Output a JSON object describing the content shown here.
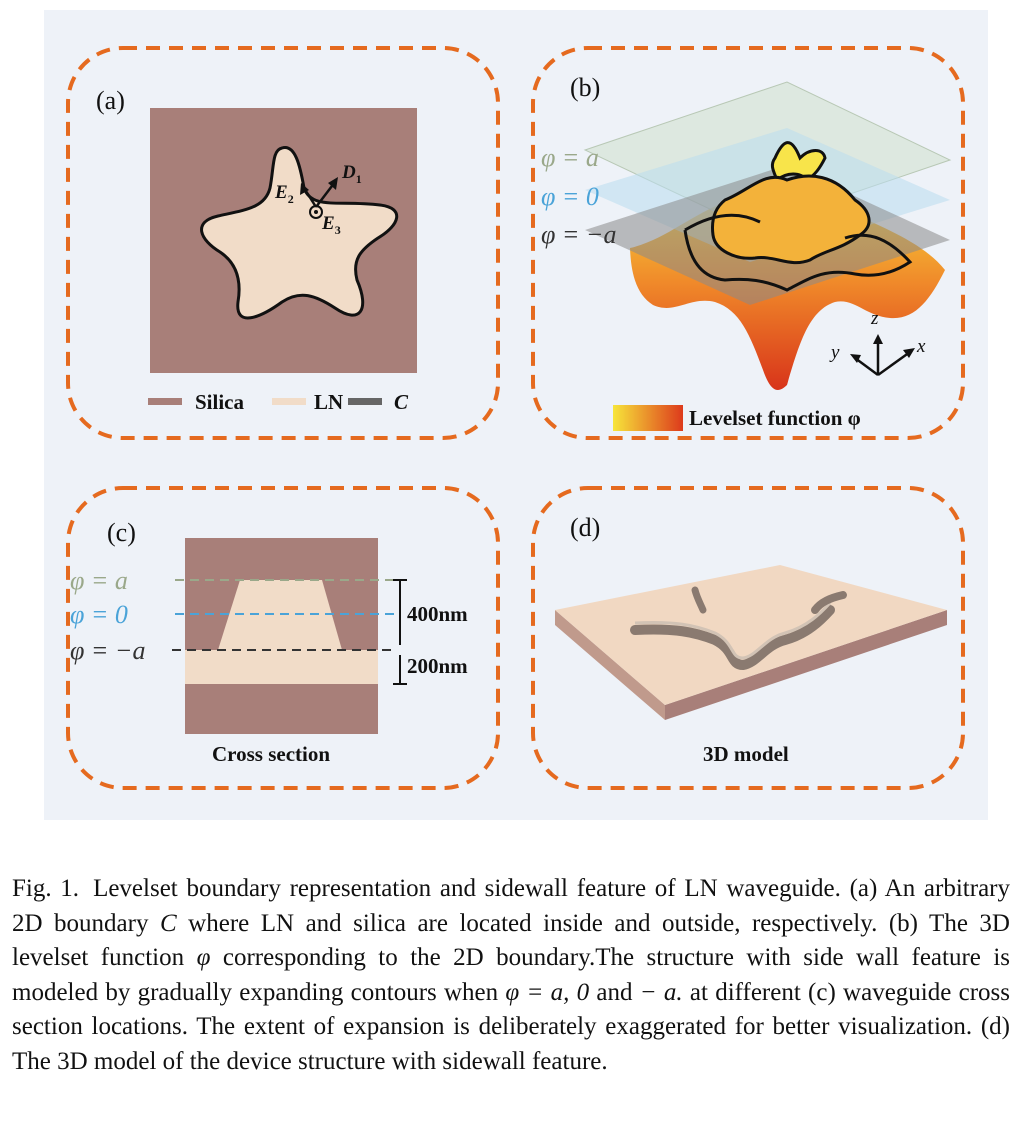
{
  "panels": {
    "a": {
      "label": "(a)",
      "vector_labels": [
        "D",
        "1",
        "E",
        "2",
        "E",
        "3"
      ],
      "legend": [
        "Silica",
        "LN",
        "C"
      ]
    },
    "b": {
      "label": "(b)",
      "levels": [
        "φ = a",
        "φ = 0",
        "φ = −a"
      ],
      "axes": [
        "z",
        "y",
        "x"
      ],
      "colorbar_label": "Levelset function φ"
    },
    "c": {
      "label": "(c)",
      "levels": [
        "φ = a",
        "φ = 0",
        "φ = −a"
      ],
      "dimensions": [
        "400nm",
        "200nm"
      ],
      "title": "Cross section"
    },
    "d": {
      "label": "(d)",
      "title": "3D model"
    }
  },
  "colors": {
    "silica": "#a87f79",
    "ln": "#f1dcc8",
    "border": "#e56a1f",
    "level_a": "#9aa88a",
    "level_0": "#4aa3d8",
    "level_neg": "#333333"
  },
  "caption": {
    "fig": "Fig. 1.",
    "t1": "Levelset boundary representation and sidewall feature of LN waveguide. (a) An arbitrary 2D boundary ",
    "c": "C",
    "t2": " where LN and silica are located inside and outside, respectively. (b) The 3D levelset function ",
    "phi": "φ",
    "t3": " corresponding to the 2D boundary.The structure with side wall feature is modeled by gradually expanding contours when ",
    "expr": "φ = a,  0",
    "t4": " and ",
    "expr2": "− a.",
    "t5": " at different (c) waveguide cross section locations. The extent of expansion is deliberately exaggerated for better visualization. (d) The 3D model of the device structure with sidewall feature."
  }
}
